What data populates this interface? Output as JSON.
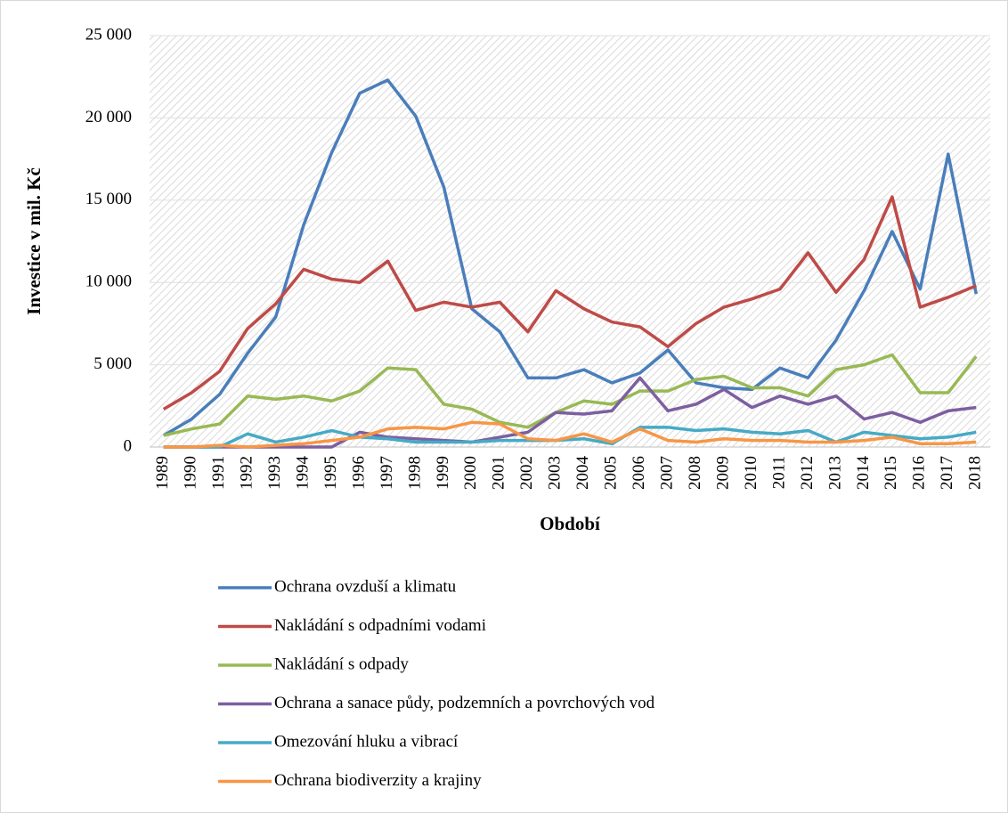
{
  "chart_data": {
    "type": "line",
    "x_label": "Období",
    "y_label": "Investice v mil. Kč",
    "categories": [
      "1989",
      "1990",
      "1991",
      "1992",
      "1993",
      "1994",
      "1995",
      "1996",
      "1997",
      "1998",
      "1999",
      "2000",
      "2001",
      "2002",
      "2003",
      "2004",
      "2005",
      "2006",
      "2007",
      "2008",
      "2009",
      "2010",
      "2011",
      "2012",
      "2013",
      "2014",
      "2015",
      "2016",
      "2017",
      "2018"
    ],
    "ylim": [
      0,
      25000
    ],
    "yticks": [
      0,
      {
        "value": 5000,
        "label": "5 000"
      },
      {
        "value": 10000,
        "label": "10 000"
      },
      {
        "value": 15000,
        "label": "15 000"
      },
      {
        "value": 20000,
        "label": "20 000"
      },
      {
        "value": 25000,
        "label": "25 000"
      }
    ],
    "grid": true,
    "legend": "bottom",
    "series": [
      {
        "name": "Ochrana ovzduší a klimatu",
        "color": "#4a7ebb",
        "values": [
          700,
          1700,
          3200,
          5700,
          7900,
          13500,
          17900,
          21500,
          22300,
          20100,
          15800,
          8400,
          7000,
          4200,
          4200,
          4700,
          3900,
          4500,
          5900,
          3900,
          3600,
          3500,
          4800,
          4200,
          6500,
          9500,
          13100,
          9600,
          17800,
          9300
        ]
      },
      {
        "name": "Nakládání s odpadními vodami",
        "color": "#be4b48",
        "values": [
          2300,
          3300,
          4600,
          7200,
          8700,
          10800,
          10200,
          10000,
          11300,
          8300,
          8800,
          8500,
          8800,
          7000,
          9500,
          8400,
          7600,
          7300,
          6100,
          7500,
          8500,
          9000,
          9600,
          11800,
          9400,
          11400,
          15200,
          8500,
          9100,
          9800
        ]
      },
      {
        "name": "Nakládání s odpady",
        "color": "#98b954",
        "values": [
          700,
          1100,
          1400,
          3100,
          2900,
          3100,
          2800,
          3400,
          4800,
          4700,
          2600,
          2300,
          1500,
          1200,
          2100,
          2800,
          2600,
          3400,
          3400,
          4100,
          4300,
          3600,
          3600,
          3100,
          4700,
          5000,
          5600,
          3300,
          3300,
          5500
        ]
      },
      {
        "name": "Ochrana a sanace půdy, podzemních a povrchových vod",
        "color": "#7d5fa0",
        "values": [
          0,
          0,
          0,
          0,
          0,
          0,
          0,
          900,
          600,
          500,
          400,
          300,
          600,
          900,
          2100,
          2000,
          2200,
          4200,
          2200,
          2600,
          3500,
          2400,
          3100,
          2600,
          3100,
          1700,
          2100,
          1500,
          2200,
          2400
        ]
      },
      {
        "name": "Omezování hluku a vibrací",
        "color": "#46aac5",
        "values": [
          0,
          0,
          0,
          800,
          300,
          600,
          1000,
          600,
          500,
          300,
          300,
          300,
          400,
          400,
          400,
          500,
          200,
          1200,
          1200,
          1000,
          1100,
          900,
          800,
          1000,
          300,
          900,
          700,
          500,
          600,
          900
        ]
      },
      {
        "name": "Ochrana biodiverzity a krajiny",
        "color": "#f79646",
        "values": [
          0,
          0,
          100,
          0,
          100,
          200,
          400,
          600,
          1100,
          1200,
          1100,
          1500,
          1400,
          500,
          400,
          800,
          300,
          1100,
          400,
          300,
          500,
          400,
          400,
          300,
          300,
          400,
          600,
          200,
          200,
          300
        ]
      }
    ]
  }
}
